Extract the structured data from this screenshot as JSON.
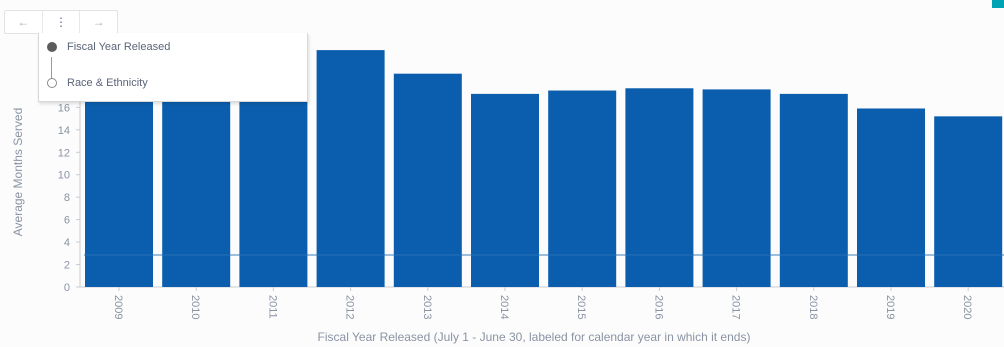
{
  "toolbar": {
    "items": [
      {
        "name": "back-icon",
        "glyph": "←"
      },
      {
        "name": "more-options-icon",
        "glyph": "⋮"
      },
      {
        "name": "forward-icon",
        "glyph": "→"
      }
    ]
  },
  "grouping_menu": {
    "options": [
      {
        "label": "Fiscal Year Released",
        "selected": true
      },
      {
        "label": "Race & Ethnicity",
        "selected": false
      }
    ]
  },
  "colors": {
    "bar": "#0b5ead",
    "axis_text": "#8a93a3",
    "accent": "#00a3b4"
  },
  "chart_data": {
    "type": "bar",
    "categories": [
      "2009",
      "2010",
      "2011",
      "2012",
      "2013",
      "2014",
      "2015",
      "2016",
      "2017",
      "2018",
      "2019",
      "2020"
    ],
    "values": [
      18.2,
      18.0,
      19.2,
      21.1,
      19.0,
      17.2,
      17.5,
      17.7,
      17.6,
      17.2,
      15.9,
      15.2
    ],
    "ylabel": "Average Months Served",
    "xlabel": "Fiscal Year Released (July 1 - June 30, labeled for calendar year in which it ends)",
    "yticks": [
      0,
      2,
      4,
      6,
      8,
      10,
      12,
      14,
      16
    ],
    "ylim": [
      0,
      22
    ],
    "grid": false
  }
}
